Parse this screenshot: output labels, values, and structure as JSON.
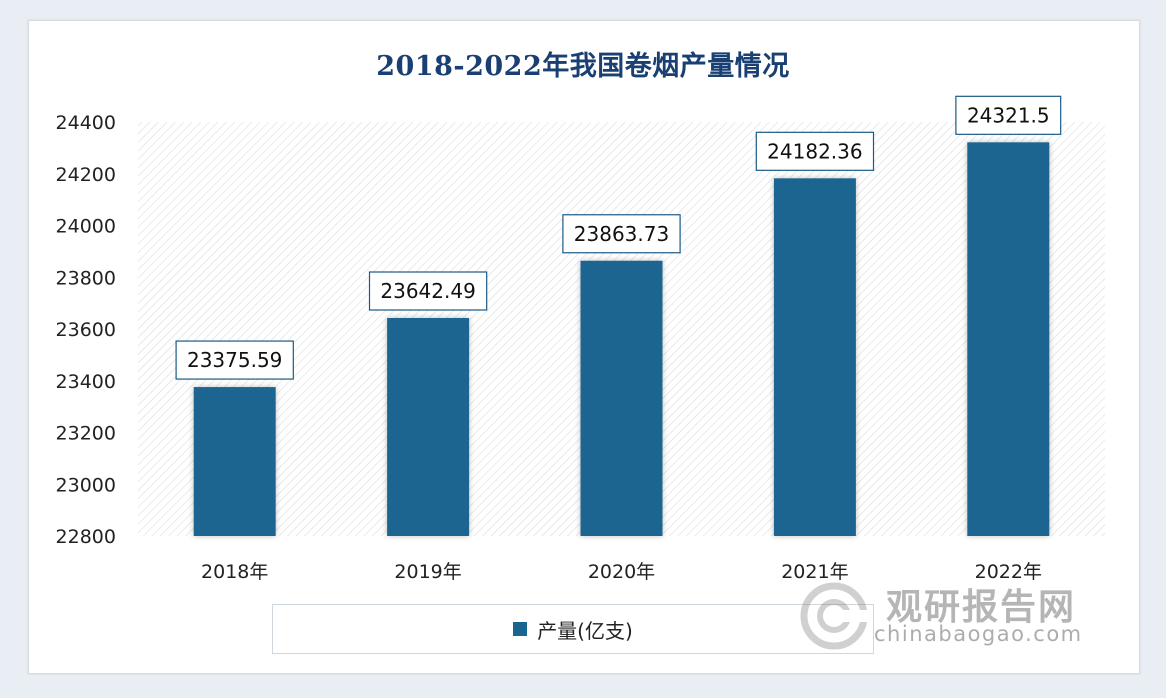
{
  "chart_data": {
    "type": "bar",
    "title": "2018-2022年我国卷烟产量情况",
    "categories": [
      "2018年",
      "2019年",
      "2020年",
      "2021年",
      "2022年"
    ],
    "values": [
      23375.59,
      23642.49,
      23863.73,
      24182.36,
      24321.5
    ],
    "value_labels": [
      "23375.59",
      "23642.49",
      "23863.73",
      "24182.36",
      "24321.5"
    ],
    "series": [
      {
        "name": "产量(亿支)",
        "values": [
          23375.59,
          23642.49,
          23863.73,
          24182.36,
          24321.5
        ]
      }
    ],
    "ylim": [
      22800,
      24400
    ],
    "yticks": [
      22800,
      23000,
      23200,
      23400,
      23600,
      23800,
      24000,
      24200,
      24400
    ],
    "xlabel": "",
    "ylabel": "",
    "grid": false,
    "legend_position": "bottom",
    "bar_color": "#1a6590"
  },
  "legend": {
    "label": "产量(亿支)"
  },
  "watermark": {
    "cn": "观研报告网",
    "en": "chinabaogao.com"
  }
}
